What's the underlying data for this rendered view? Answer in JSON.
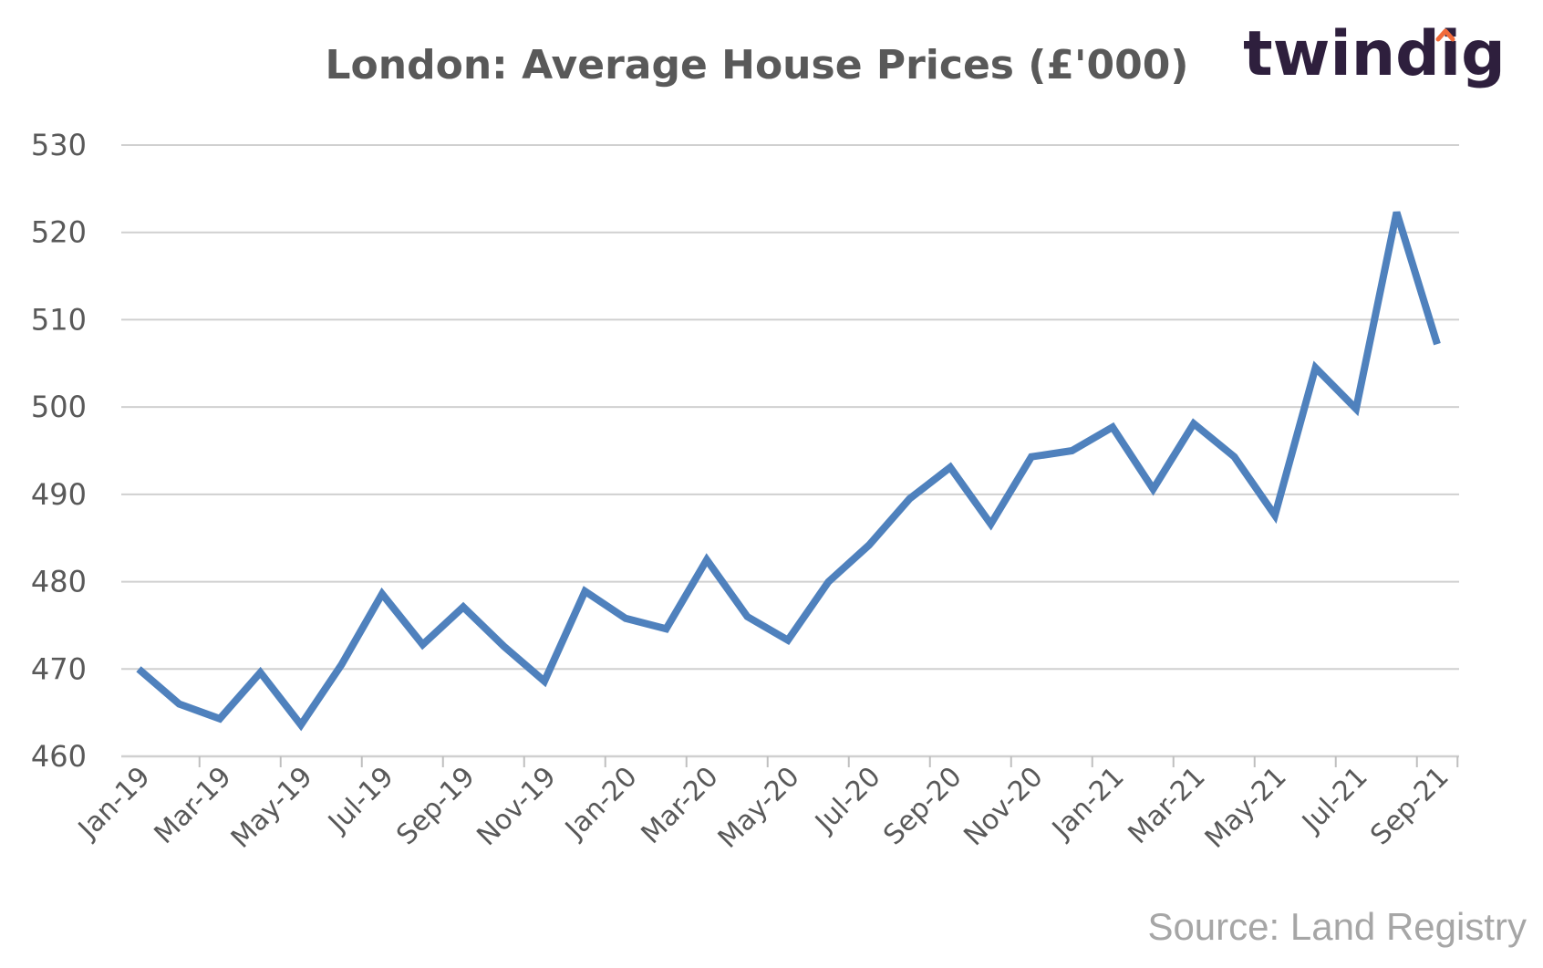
{
  "brand": {
    "name": "twindig",
    "accent": "#f26b3a",
    "color": "#2e1f3d"
  },
  "source": "Source: Land Registry",
  "chart_data": {
    "type": "line",
    "title": "London: Average House Prices (£'000)",
    "xlabel": "",
    "ylabel": "",
    "ylim": [
      460,
      530
    ],
    "yticks": [
      460,
      470,
      480,
      490,
      500,
      510,
      520,
      530
    ],
    "grid": true,
    "legend": "none",
    "line_color": "#4f81bd",
    "x": [
      "Jan-19",
      "Feb-19",
      "Mar-19",
      "Apr-19",
      "May-19",
      "Jun-19",
      "Jul-19",
      "Aug-19",
      "Sep-19",
      "Oct-19",
      "Nov-19",
      "Dec-19",
      "Jan-20",
      "Feb-20",
      "Mar-20",
      "Apr-20",
      "May-20",
      "Jun-20",
      "Jul-20",
      "Aug-20",
      "Sep-20",
      "Oct-20",
      "Nov-20",
      "Dec-20",
      "Jan-21",
      "Feb-21",
      "Mar-21",
      "Apr-21",
      "May-21",
      "Jun-21",
      "Jul-21",
      "Aug-21",
      "Sep-21"
    ],
    "x_tick_labels": [
      "Jan-19",
      "Mar-19",
      "May-19",
      "Jul-19",
      "Sep-19",
      "Nov-19",
      "Jan-20",
      "Mar-20",
      "May-20",
      "Jul-20",
      "Sep-20",
      "Nov-20",
      "Jan-21",
      "Mar-21",
      "May-21",
      "Jul-21",
      "Sep-21"
    ],
    "series": [
      {
        "values": [
          470.0,
          466.0,
          464.3,
          469.6,
          463.6,
          470.5,
          478.6,
          472.8,
          477.1,
          472.6,
          468.6,
          478.9,
          475.8,
          474.6,
          482.5,
          476.0,
          473.3,
          480.0,
          484.2,
          489.5,
          493.1,
          486.6,
          494.3,
          495.0,
          497.7,
          490.6,
          498.1,
          494.3,
          487.6,
          504.5,
          499.8,
          522.3,
          507.2
        ]
      }
    ]
  }
}
